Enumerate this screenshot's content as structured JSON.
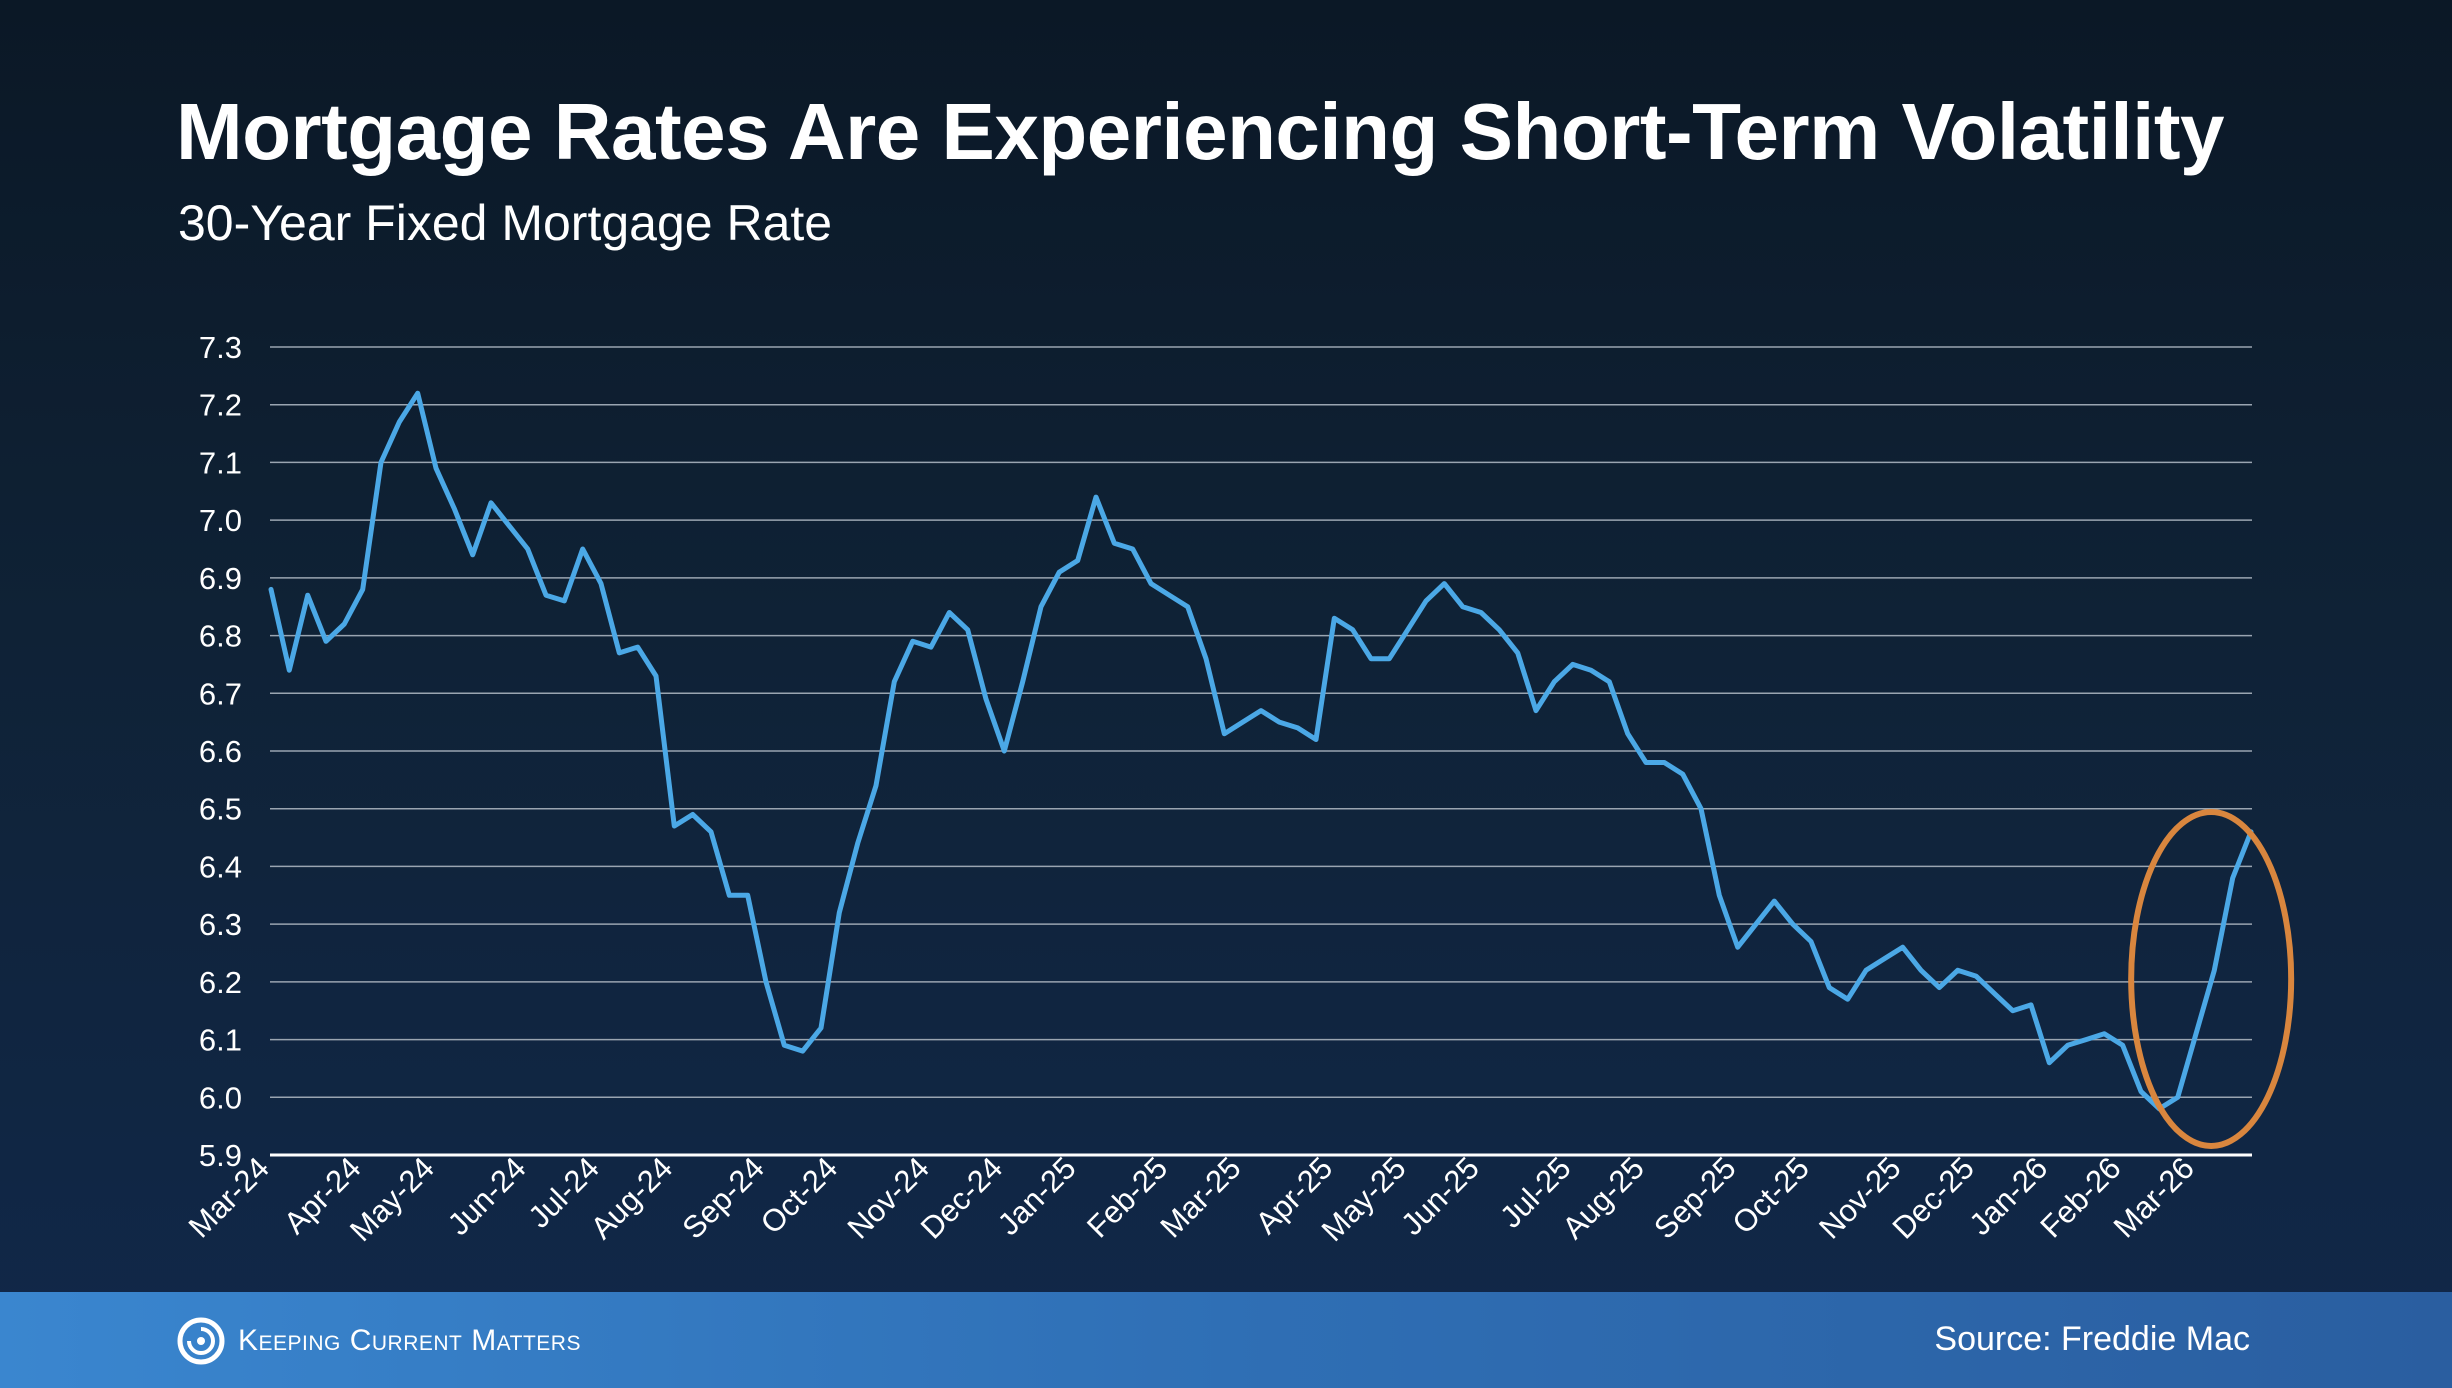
{
  "header": {
    "title": "Mortgage Rates Are Experiencing Short-Term Volatility",
    "subtitle": "30-Year Fixed Mortgage Rate"
  },
  "footer": {
    "brand": "Keeping Current Matters",
    "source": "Source: Freddie Mac",
    "brand_icon": "swirl-logo-icon"
  },
  "colors": {
    "line": "#4ba8e6",
    "highlight": "#d9863e",
    "grid": "#9aa5b1",
    "axis": "#ffffff"
  },
  "chart_data": {
    "type": "line",
    "title": "Mortgage Rates Are Experiencing Short-Term Volatility",
    "subtitle": "30-Year Fixed Mortgage Rate",
    "xlabel": "",
    "ylabel": "",
    "ylim": [
      5.9,
      7.3
    ],
    "yticks": [
      "7.3",
      "7.2",
      "7.1",
      "7.0",
      "6.9",
      "6.8",
      "6.7",
      "6.6",
      "6.5",
      "6.4",
      "6.3",
      "6.2",
      "6.1",
      "6.0",
      "5.9"
    ],
    "grid": true,
    "highlight": "ellipse around final weeks (Mar-26)",
    "month_labels": [
      "Mar-24",
      "Apr-24",
      "May-24",
      "Jun-24",
      "Jul-24",
      "Aug-24",
      "Sep-24",
      "Oct-24",
      "Nov-24",
      "Dec-24",
      "Jan-25",
      "Feb-25",
      "Mar-25",
      "Apr-25",
      "May-25",
      "Jun-25",
      "Jul-25",
      "Aug-25",
      "Sep-25",
      "Oct-25",
      "Nov-25",
      "Dec-25",
      "Jan-26",
      "Feb-26",
      "Mar-26"
    ],
    "month_label_week_index": [
      0,
      5,
      9,
      14,
      18,
      22,
      27,
      31,
      36,
      40,
      44,
      49,
      53,
      58,
      62,
      66,
      71,
      75,
      80,
      84,
      89,
      93,
      97,
      101,
      105
    ],
    "series": [
      {
        "name": "30-Year Fixed Mortgage Rate",
        "values": [
          6.88,
          6.74,
          6.87,
          6.79,
          6.82,
          6.88,
          7.1,
          7.17,
          7.22,
          7.09,
          7.02,
          6.94,
          7.03,
          6.99,
          6.95,
          6.87,
          6.86,
          6.95,
          6.89,
          6.77,
          6.78,
          6.73,
          6.47,
          6.49,
          6.46,
          6.35,
          6.35,
          6.2,
          6.09,
          6.08,
          6.12,
          6.32,
          6.44,
          6.54,
          6.72,
          6.79,
          6.78,
          6.84,
          6.81,
          6.69,
          6.6,
          6.72,
          6.85,
          6.91,
          6.93,
          7.04,
          6.96,
          6.95,
          6.89,
          6.87,
          6.85,
          6.76,
          6.63,
          6.65,
          6.67,
          6.65,
          6.64,
          6.62,
          6.83,
          6.81,
          6.76,
          6.76,
          6.81,
          6.86,
          6.89,
          6.85,
          6.84,
          6.81,
          6.77,
          6.67,
          6.72,
          6.75,
          6.74,
          6.72,
          6.63,
          6.58,
          6.58,
          6.56,
          6.5,
          6.35,
          6.26,
          6.3,
          6.34,
          6.3,
          6.27,
          6.19,
          6.17,
          6.22,
          6.24,
          6.26,
          6.22,
          6.19,
          6.22,
          6.21,
          6.18,
          6.15,
          6.16,
          6.06,
          6.09,
          6.1,
          6.11,
          6.09,
          6.01,
          5.98,
          6.0,
          6.11,
          6.22,
          6.38,
          6.46
        ]
      }
    ]
  }
}
